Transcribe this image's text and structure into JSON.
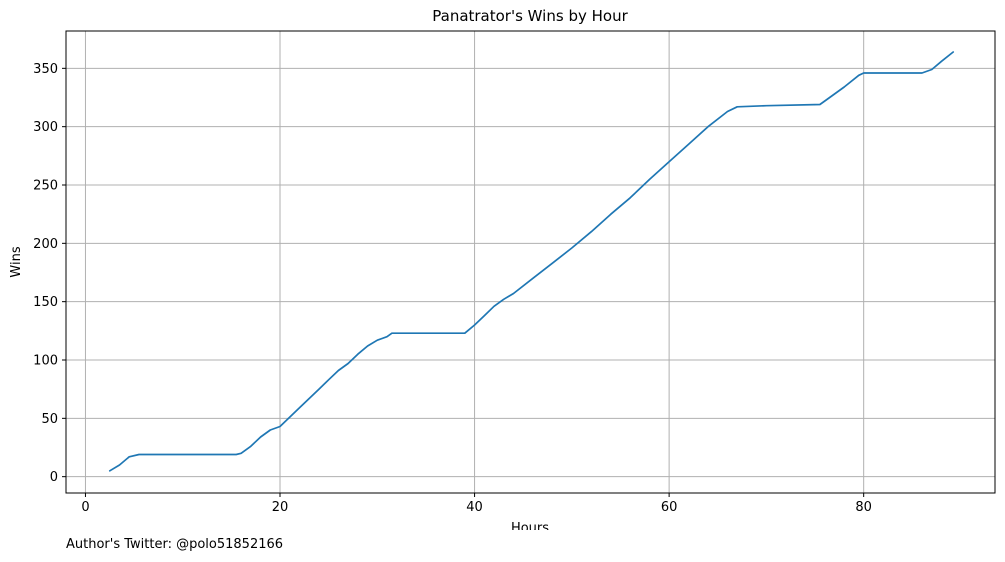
{
  "chart_data": {
    "type": "line",
    "title": "Panatrator's Wins by Hour",
    "xlabel": "Hours",
    "ylabel": "Wins",
    "xlim": [
      -2,
      93.5
    ],
    "ylim": [
      -14,
      382
    ],
    "xticks": [
      0,
      20,
      40,
      60,
      80
    ],
    "yticks": [
      0,
      50,
      100,
      150,
      200,
      250,
      300,
      350
    ],
    "grid": true,
    "series": [
      {
        "color": "#1f77b4",
        "x": [
          2.5,
          3.5,
          4.5,
          5.5,
          10,
          15.5,
          16,
          17,
          18,
          19,
          20,
          22,
          24,
          25,
          26,
          27,
          28,
          29,
          30,
          31,
          31.5,
          35,
          39,
          40,
          41,
          42,
          43,
          44,
          46,
          48,
          50,
          52,
          54,
          56,
          58,
          60,
          62,
          64,
          66,
          67,
          70,
          75.5,
          76,
          78,
          79.5,
          80,
          83,
          86,
          87,
          88,
          89.2
        ],
        "y": [
          5,
          10,
          17,
          19,
          19,
          19,
          20,
          26,
          34,
          40,
          43,
          59,
          75,
          83,
          91,
          97,
          105,
          112,
          117,
          120,
          123,
          123,
          123,
          130,
          138,
          146,
          152,
          157,
          170,
          183,
          196,
          210,
          225,
          239,
          255,
          270,
          285,
          300,
          313,
          317,
          318,
          319,
          322,
          334,
          344,
          346,
          346,
          346,
          349,
          356,
          364
        ]
      }
    ]
  },
  "footer": {
    "text": "Author's Twitter: @polo51852166"
  }
}
